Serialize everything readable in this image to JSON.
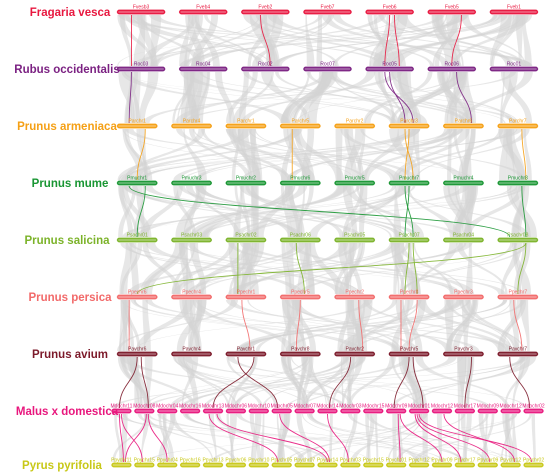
{
  "species": [
    {
      "name": "Fragaria vesca",
      "color": "#e8173f",
      "chromosomes": [
        "Fvesb3",
        "Fveb4",
        "Fveb2",
        "Fveb7",
        "Fveb6",
        "Fveb5",
        "Fveb1"
      ]
    },
    {
      "name": "Rubus occidentalis",
      "color": "#7b2182",
      "chromosomes": [
        "Roc03",
        "Roc04",
        "Roc02",
        "Roc07",
        "Roc05",
        "Roc06",
        "Roc01"
      ]
    },
    {
      "name": "Prunus armeniaca",
      "color": "#f5a015",
      "chromosomes": [
        "Parchr1",
        "Parchr4",
        "Parchr1",
        "Parchr5",
        "Parchr2",
        "Parchr3",
        "Parchr6",
        "Parchr7"
      ]
    },
    {
      "name": "Prunus mume",
      "color": "#199633",
      "chromosomes": [
        "Pmuchr1",
        "Pmuchr3",
        "Pmuchr2",
        "Pmuchr6",
        "Pmuchr5",
        "Pmuchr7",
        "Pmuchr4",
        "Pmuchr8"
      ]
    },
    {
      "name": "Prunus salicina",
      "color": "#7cb32a",
      "chromosomes": [
        "Psachr01",
        "Psachr03",
        "Psachr02",
        "Psachr06",
        "Psachr05",
        "Psachr07",
        "Psachr04",
        "Psachr08"
      ]
    },
    {
      "name": "Prunus persica",
      "color": "#f26a6a",
      "chromosomes": [
        "Ppechr6",
        "Ppechr4",
        "Ppechr1",
        "Ppechr5",
        "Ppechr2",
        "Ppechr8",
        "Ppechr3",
        "Ppechr7"
      ]
    },
    {
      "name": "Prunus avium",
      "color": "#7c1a2a",
      "chromosomes": [
        "Pavchr6",
        "Pavchr4",
        "Pavchr1",
        "Pavchr8",
        "Pavchr2",
        "Pavchr5",
        "Pavchr3",
        "Pavchr7"
      ]
    },
    {
      "name": "Malus x domestica",
      "color": "#e8177d",
      "chromosomes": [
        "Mdochr11",
        "Mdochr08",
        "Mdochr04",
        "Mdochr16",
        "Mdochr13",
        "Mdochr06",
        "Mdochr10",
        "Mdochr05",
        "Mdochr07",
        "Mdochr14",
        "Mdochr03",
        "Mdochr15",
        "Mdochr09",
        "Mdochr01",
        "Mdochr12",
        "Mdochr17",
        "Mdochr09",
        "Mdochr12",
        "Mdochr02"
      ]
    },
    {
      "name": "Pyrus pyrifolia",
      "color": "#c8c818",
      "chromosomes": [
        "Ppychr11",
        "Ppychr15",
        "Ppychr04",
        "Ppychr16",
        "Ppychr13",
        "Ppychr06",
        "Ppychr10",
        "Ppychr05",
        "Ppychr07",
        "Ppychr14",
        "Ppychr03",
        "Ppychr15",
        "Ppychr01",
        "Ppychr12",
        "Ppychr09",
        "Ppychr17",
        "Ppychr09",
        "Ppychr12",
        "Ppychr02"
      ]
    }
  ],
  "background_link_color": "#d4d4d4"
}
